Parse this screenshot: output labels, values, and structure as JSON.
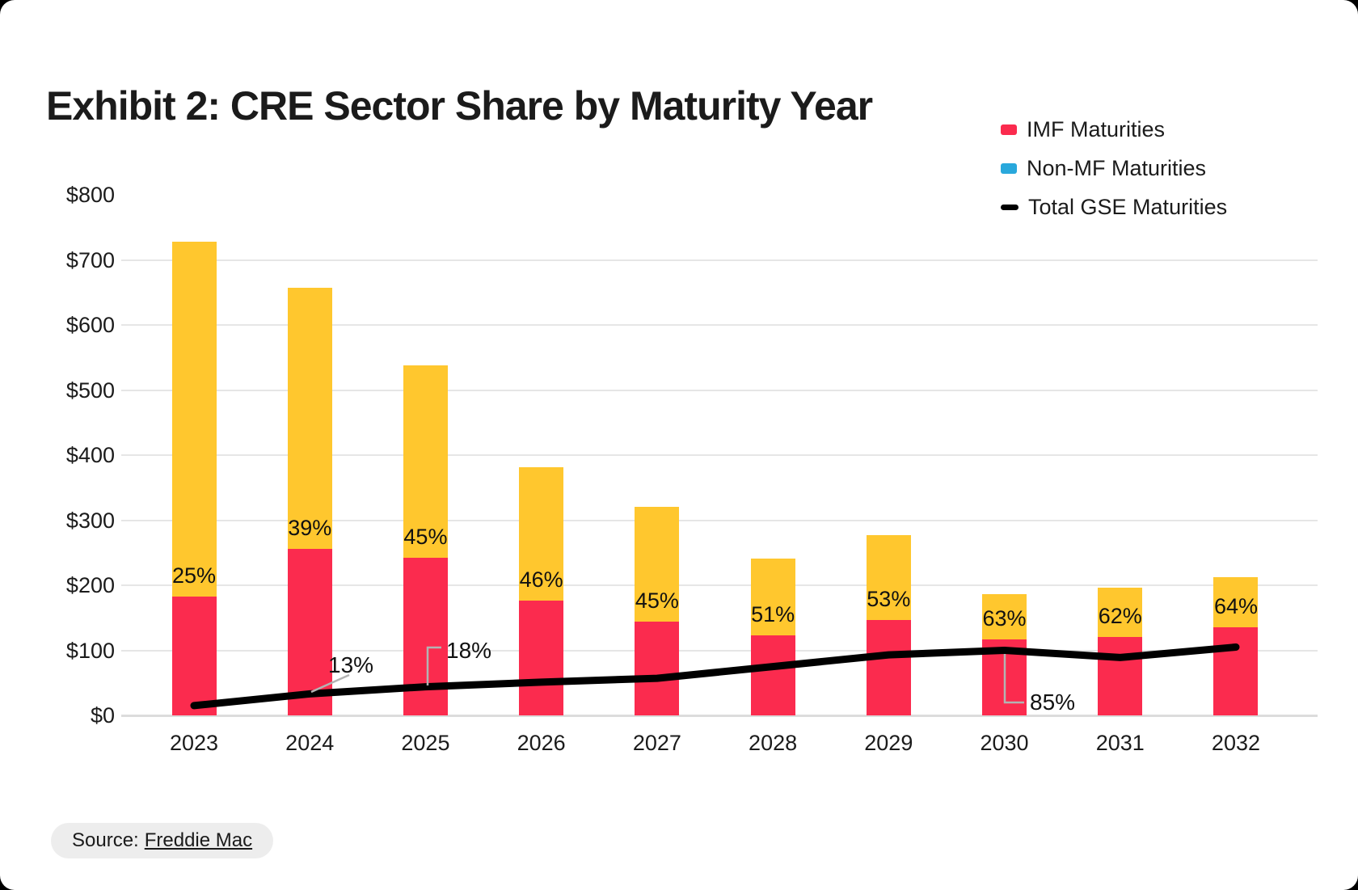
{
  "page": {
    "title": "Exhibit 2: CRE Sector Share by Maturity Year"
  },
  "legend": {
    "items": [
      {
        "label": "IMF Maturities",
        "swatch": "square",
        "color": "#fb2b4e"
      },
      {
        "label": "Non-MF Maturities",
        "swatch": "square",
        "color": "#29a8dc"
      },
      {
        "label": "Total GSE Maturities",
        "swatch": "dash",
        "color": "#000000"
      }
    ]
  },
  "chart_data": {
    "type": "bar",
    "stacked": true,
    "title": "Exhibit 2: CRE Sector Share by Maturity Year",
    "categories": [
      "2023",
      "2024",
      "2025",
      "2026",
      "2027",
      "2028",
      "2029",
      "2030",
      "2031",
      "2032"
    ],
    "series": [
      {
        "name": "IMF Maturities",
        "color": "#fb2b4e",
        "values": [
          182,
          256,
          242,
          176,
          144,
          123,
          147,
          117,
          121,
          136
        ]
      },
      {
        "name": "Non-MF Maturities",
        "color": "#ffc72e",
        "legend_color": "#29a8dc",
        "values": [
          546,
          401,
          296,
          205,
          176,
          118,
          130,
          69,
          75,
          76
        ]
      }
    ],
    "stack_totals": [
      728,
      657,
      538,
      381,
      320,
      241,
      277,
      186,
      196,
      212
    ],
    "line_series": {
      "name": "Total GSE Maturities",
      "color": "#000000",
      "values": [
        15,
        33,
        44,
        51,
        57,
        75,
        93,
        100,
        89,
        105
      ]
    },
    "bar_labels": [
      "25%",
      "39%",
      "45%",
      "46%",
      "45%",
      "51%",
      "53%",
      "63%",
      "62%",
      "64%"
    ],
    "annotations": [
      {
        "text": "13%",
        "category": "2024"
      },
      {
        "text": "18%",
        "category": "2025"
      },
      {
        "text": "85%",
        "category": "2030"
      }
    ],
    "y_ticks": [
      {
        "label": "$0",
        "value": 0
      },
      {
        "label": "$100",
        "value": 100
      },
      {
        "label": "$200",
        "value": 200
      },
      {
        "label": "$300",
        "value": 300
      },
      {
        "label": "$400",
        "value": 400
      },
      {
        "label": "$500",
        "value": 500
      },
      {
        "label": "$600",
        "value": 600
      },
      {
        "label": "$700",
        "value": 700
      },
      {
        "label": "$800",
        "value": 800
      }
    ],
    "ylim": [
      0,
      800
    ],
    "grid": true,
    "legend_position": "top-right"
  },
  "colors": {
    "grid": "#e6e6e6",
    "axis_text": "#1b1b1b",
    "leader": "#b3b3b3",
    "chip_bg": "#ededed"
  },
  "source": {
    "prefix": "Source:",
    "link_text": "Freddie Mac"
  }
}
